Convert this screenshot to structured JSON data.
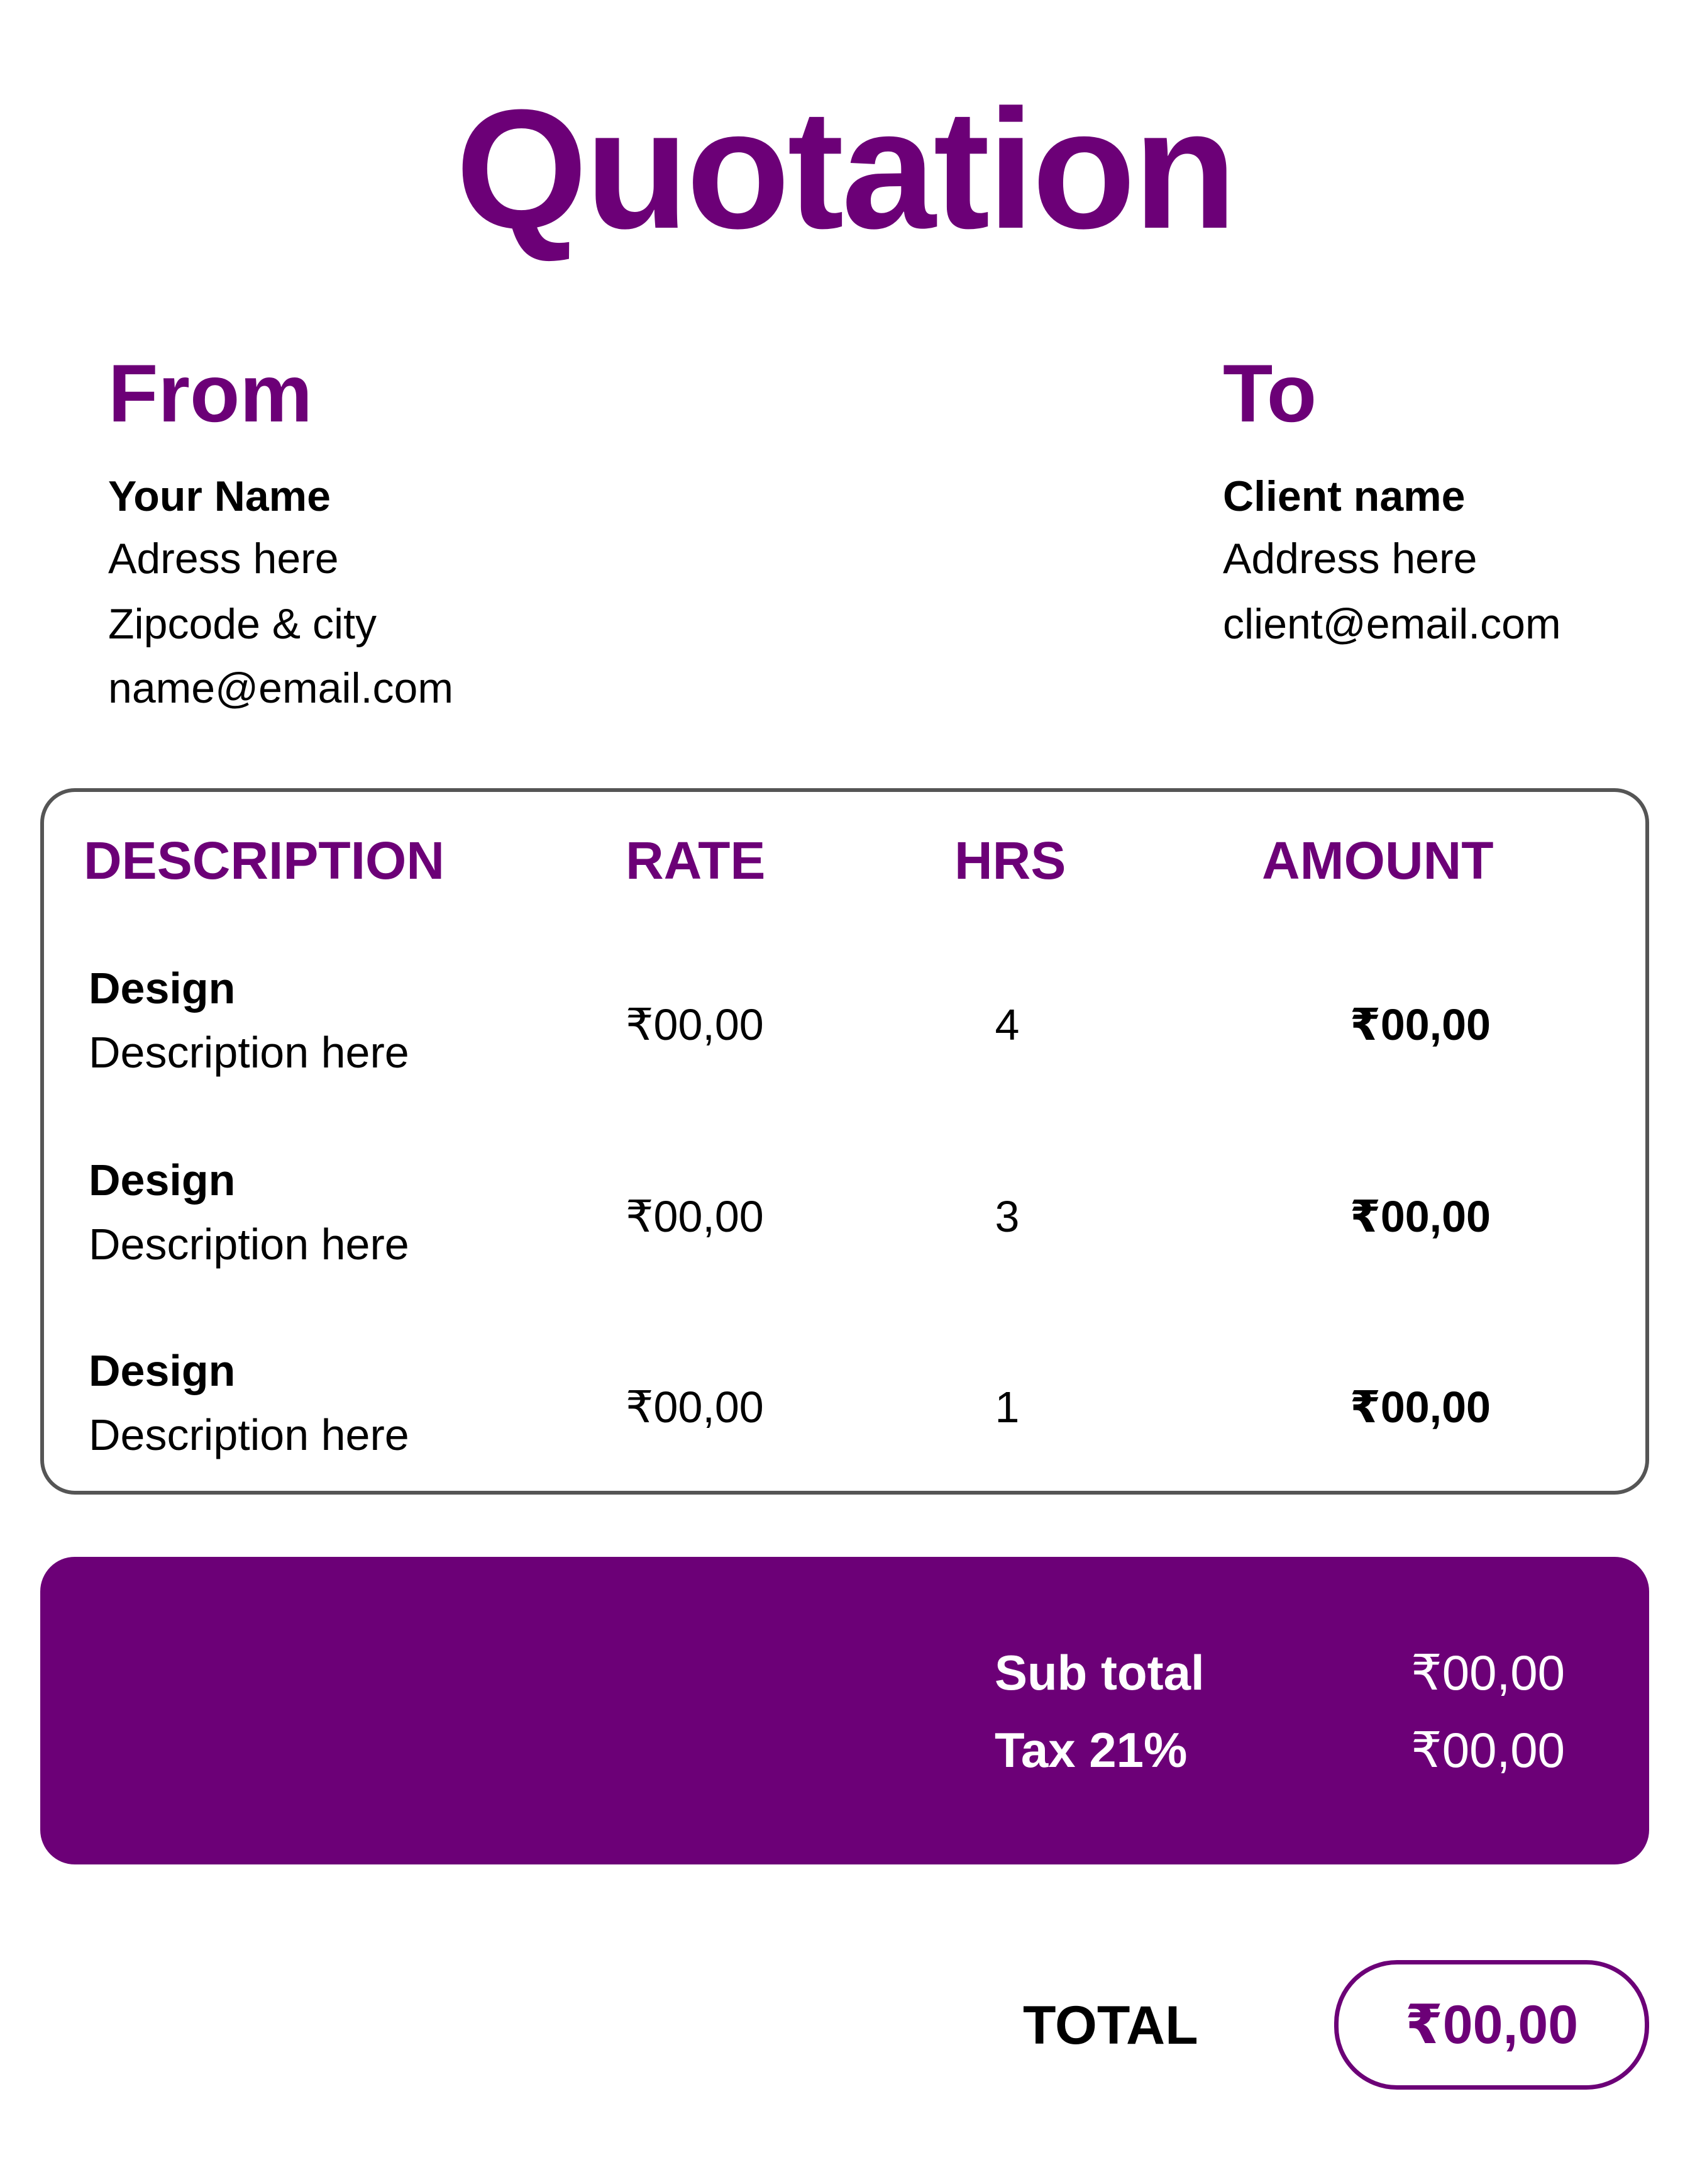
{
  "title": "Quotation",
  "accent_color": "#6c0077",
  "from": {
    "heading": "From",
    "name": "Your Name",
    "address": "Adress here",
    "city": "Zipcode & city",
    "email": "name@email.com"
  },
  "to": {
    "heading": "To",
    "name": "Client name",
    "address": "Address here",
    "email": "client@email.com"
  },
  "table": {
    "headers": [
      "DESCRIPTION",
      "RATE",
      "HRS",
      "AMOUNT"
    ],
    "rows": [
      {
        "item": "Design",
        "description": "Description here",
        "rate": "₹00,00",
        "hrs": "4",
        "amount": "₹00,00"
      },
      {
        "item": "Design",
        "description": "Description here",
        "rate": "₹00,00",
        "hrs": "3",
        "amount": "₹00,00"
      },
      {
        "item": "Design",
        "description": "Description here",
        "rate": "₹00,00",
        "hrs": "1",
        "amount": "₹00,00"
      }
    ]
  },
  "totals": {
    "subtotal_label": "Sub total",
    "subtotal_value": "₹00,00",
    "tax_label": "Tax 21%",
    "tax_value": "₹00,00",
    "total_label": "TOTAL",
    "total_value": "₹00,00"
  }
}
